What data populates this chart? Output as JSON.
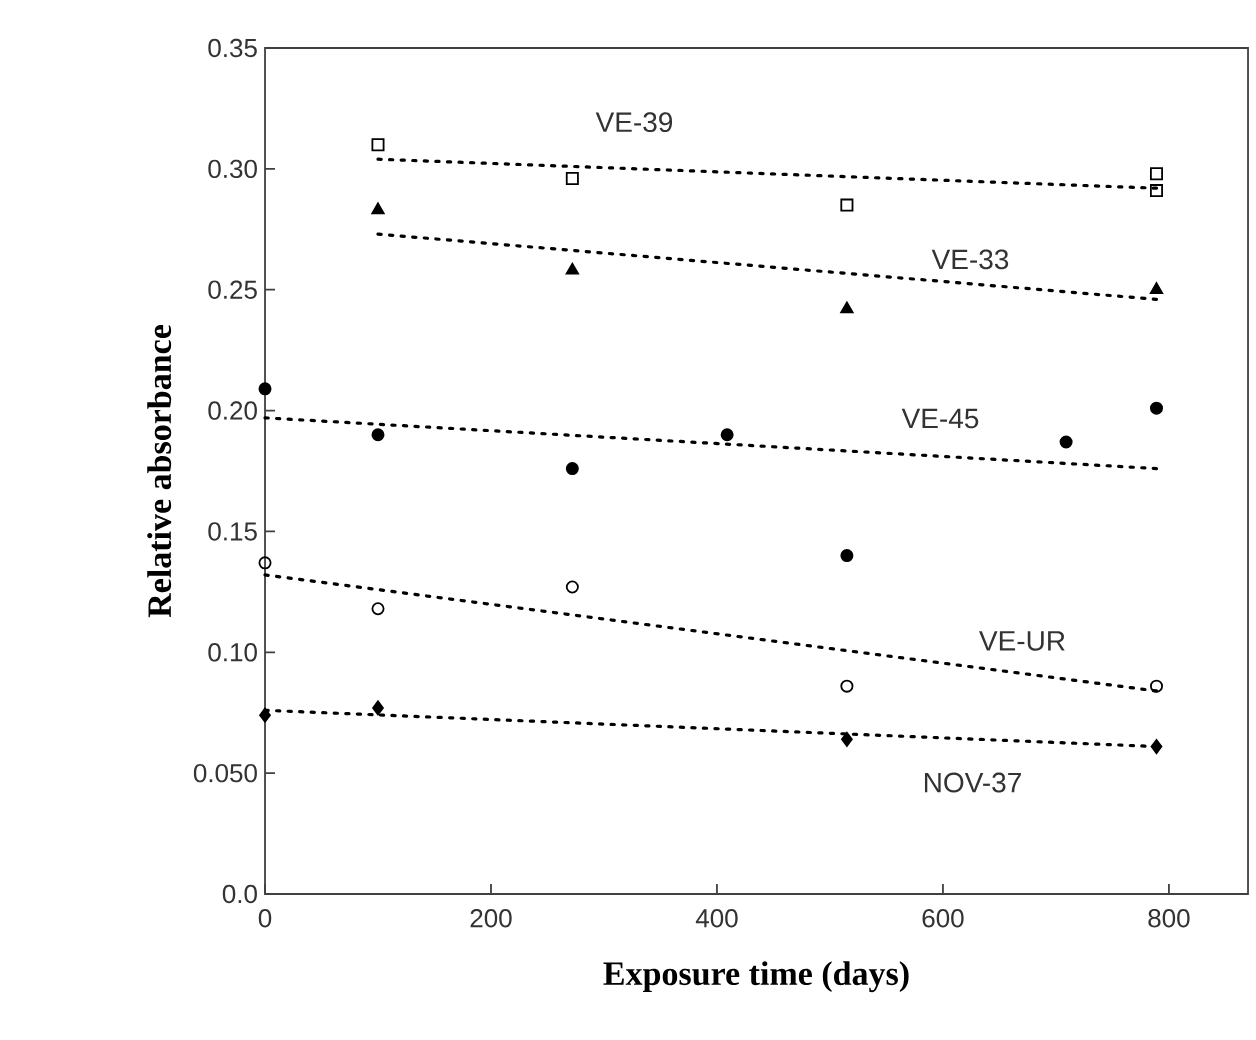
{
  "chart_data": {
    "type": "scatter",
    "xlabel": "Exposure time (days)",
    "ylabel": "Relative absorbance",
    "xlim": [
      0,
      870
    ],
    "ylim": [
      0,
      0.35
    ],
    "xticks": [
      0,
      200,
      400,
      600,
      800
    ],
    "yticks": [
      {
        "value": 0,
        "label": "0.0"
      },
      {
        "value": 0.05,
        "label": "0.050"
      },
      {
        "value": 0.1,
        "label": "0.10"
      },
      {
        "value": 0.15,
        "label": "0.15"
      },
      {
        "value": 0.2,
        "label": "0.20"
      },
      {
        "value": 0.25,
        "label": "0.25"
      },
      {
        "value": 0.3,
        "label": "0.30"
      },
      {
        "value": 0.35,
        "label": "0.35"
      }
    ],
    "grid": false,
    "legend": false,
    "series": [
      {
        "type": "scatter",
        "marker": "square",
        "color": "#000000",
        "x": [
          100,
          272,
          515,
          789,
          789
        ],
        "values": [
          0.31,
          0.296,
          0.285,
          0.298,
          0.291
        ]
      },
      {
        "type": "scatter",
        "marker": "triangle",
        "color": "#000000",
        "x": [
          100,
          272,
          515,
          789
        ],
        "values": [
          0.283,
          0.258,
          0.242,
          0.25
        ]
      },
      {
        "type": "scatter",
        "marker": "circle",
        "color": "#000000",
        "x": [
          0,
          100,
          272,
          409,
          515,
          709,
          789
        ],
        "values": [
          0.209,
          0.19,
          0.176,
          0.19,
          0.14,
          0.187,
          0.201
        ]
      },
      {
        "type": "scatter",
        "marker": "circle",
        "color": "#000000",
        "x": [
          0,
          100,
          272,
          515,
          789
        ],
        "values": [
          0.137,
          0.118,
          0.127,
          0.086,
          0.086
        ]
      },
      {
        "type": "scatter",
        "marker": "diamond",
        "color": "#000000",
        "x": [
          0,
          100,
          515,
          789
        ],
        "values": [
          0.074,
          0.077,
          0.064,
          0.061
        ]
      },
      {
        "name": "VE-39",
        "type": "line",
        "line_style": "dotted",
        "marker": "none",
        "color": "#000000",
        "x": [
          100,
          789
        ],
        "values": [
          0.304,
          0.292
        ]
      },
      {
        "name": "VE-33",
        "type": "line",
        "line_style": "dotted",
        "marker": "none",
        "color": "#000000",
        "x": [
          100,
          789
        ],
        "values": [
          0.273,
          0.246
        ]
      },
      {
        "name": "VE-45",
        "type": "line",
        "line_style": "dotted",
        "marker": "none",
        "color": "#000000",
        "x": [
          0,
          789
        ],
        "values": [
          0.197,
          0.176
        ]
      },
      {
        "name": "VE-UR",
        "type": "line",
        "line_style": "dotted",
        "marker": "none",
        "color": "#000000",
        "x": [
          0,
          789
        ],
        "values": [
          0.132,
          0.084
        ]
      },
      {
        "name": "NOV-37",
        "type": "line",
        "line_style": "dotted",
        "marker": "none",
        "color": "#000000",
        "x": [
          0,
          789
        ],
        "values": [
          0.076,
          0.061
        ]
      }
    ]
  }
}
